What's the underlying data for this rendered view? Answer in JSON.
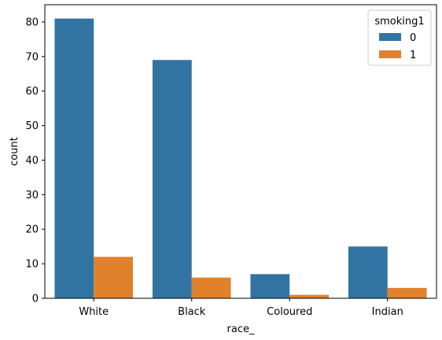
{
  "chart_data": {
    "type": "bar",
    "categories": [
      "White",
      "Black",
      "Coloured",
      "Indian"
    ],
    "series": [
      {
        "name": "0",
        "values": [
          81,
          69,
          7,
          15
        ],
        "color": "#3274a1"
      },
      {
        "name": "1",
        "values": [
          12,
          6,
          1,
          3
        ],
        "color": "#e1812c"
      }
    ],
    "title": "",
    "xlabel": "race_",
    "ylabel": "count",
    "ylim": [
      0,
      85
    ],
    "yticks": [
      0,
      10,
      20,
      30,
      40,
      50,
      60,
      70,
      80
    ],
    "grid": false,
    "legend": {
      "title": "smoking1",
      "placement": "top-right"
    }
  }
}
